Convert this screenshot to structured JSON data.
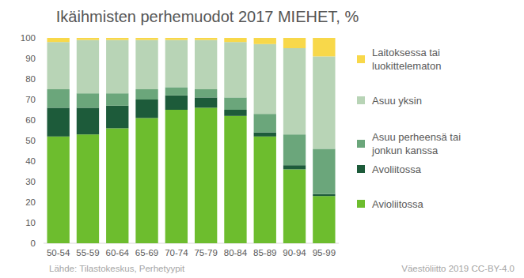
{
  "chart_data": {
    "type": "bar",
    "title": "Ikäihmisten perhemuodot 2017 MIEHET, %",
    "stacked": true,
    "grid": false,
    "legend": "right",
    "categories": [
      "50-54",
      "55-59",
      "60-64",
      "65-69",
      "70-74",
      "75-79",
      "80-84",
      "85-89",
      "90-94",
      "95-99"
    ],
    "ylim": [
      0,
      100
    ],
    "yticks": [
      0,
      10,
      20,
      30,
      40,
      50,
      60,
      70,
      80,
      90,
      100
    ],
    "series": [
      {
        "name": "Avioliitossa",
        "color": "#6dbd2e",
        "values": [
          52,
          53,
          56,
          61,
          65,
          66,
          62,
          52,
          36,
          23
        ]
      },
      {
        "name": "Avoliitossa",
        "color": "#1d5b3a",
        "values": [
          14,
          13,
          11,
          9,
          7,
          5,
          3,
          2,
          2,
          1
        ]
      },
      {
        "name": "Asuu perheensä tai jonkun kanssa",
        "color": "#6ba67b",
        "values": [
          9,
          7,
          6,
          5,
          4,
          4,
          6,
          9,
          15,
          22
        ]
      },
      {
        "name": "Asuu yksin",
        "color": "#b8d4b6",
        "values": [
          23,
          26,
          26,
          24,
          23,
          24,
          27,
          34,
          42,
          45
        ]
      },
      {
        "name": "Laitoksessa tai luokittelematon",
        "color": "#f8d84a",
        "values": [
          2,
          1,
          1,
          1,
          1,
          1,
          2,
          3,
          5,
          9
        ]
      }
    ],
    "annotations": [
      "Lähde: Tilastokeskus, Perhetyypit",
      "Väestöliitto 2019 CC-BY-4.0"
    ]
  }
}
